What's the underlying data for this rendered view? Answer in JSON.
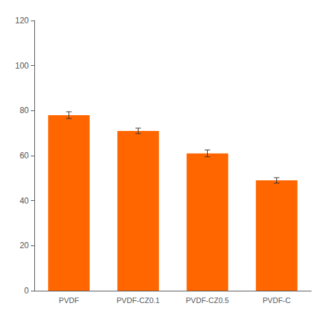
{
  "chart_data": {
    "type": "bar",
    "categories": [
      "PVDF",
      "PVDF-CZ0.1",
      "PVDF-CZ0.5",
      "PVDF-C"
    ],
    "values": [
      78,
      71,
      61,
      49
    ],
    "errors": [
      1.5,
      1.2,
      1.5,
      1.2
    ],
    "color": "#FF6600",
    "ylim": [
      0,
      120
    ],
    "yticks": [
      0,
      20,
      40,
      60,
      80,
      100,
      120
    ],
    "grid": false
  }
}
